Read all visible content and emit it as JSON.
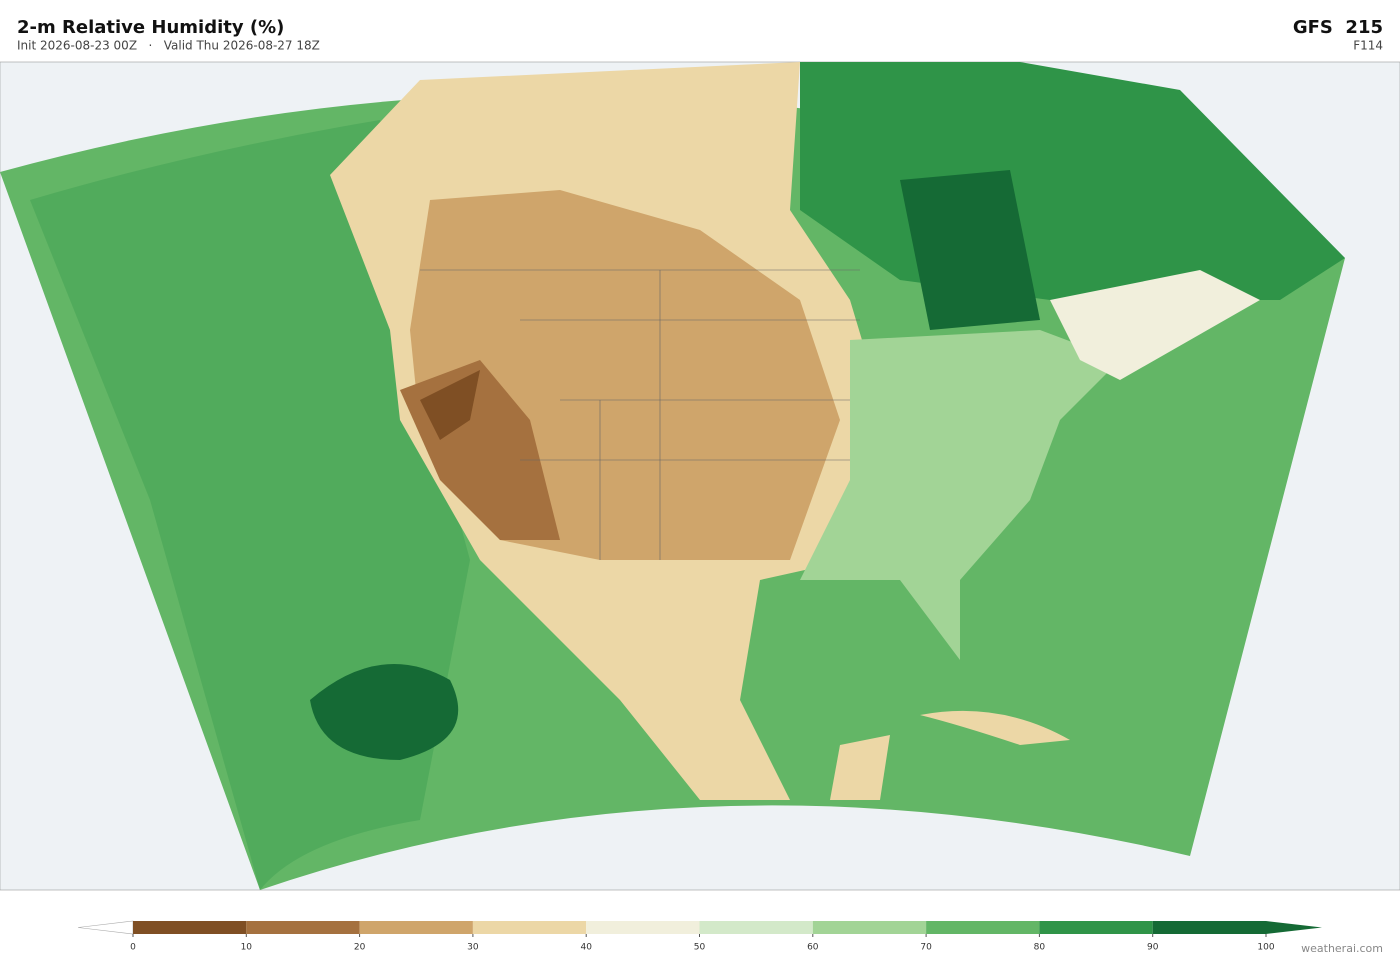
{
  "header": {
    "title": "2-m Relative Humidity  (%)",
    "subtitle": "Init 2026-08-23 00Z   ·   Valid Thu 2026-08-27 18Z",
    "model": "GFS  215",
    "forecast": "F114"
  },
  "colorbar": {
    "ticks": [
      0,
      10,
      20,
      30,
      40,
      50,
      60,
      70,
      80,
      90,
      100
    ],
    "colors": [
      "#7f4f24",
      "#a5713f",
      "#cfa56b",
      "#ecd7a6",
      "#f1efdc",
      "#d3e9c9",
      "#a2d496",
      "#63b666",
      "#2f9448",
      "#156a35"
    ],
    "under_color": "#ffffff",
    "over_color": "#156a35"
  },
  "credit": "weatherai.com"
}
